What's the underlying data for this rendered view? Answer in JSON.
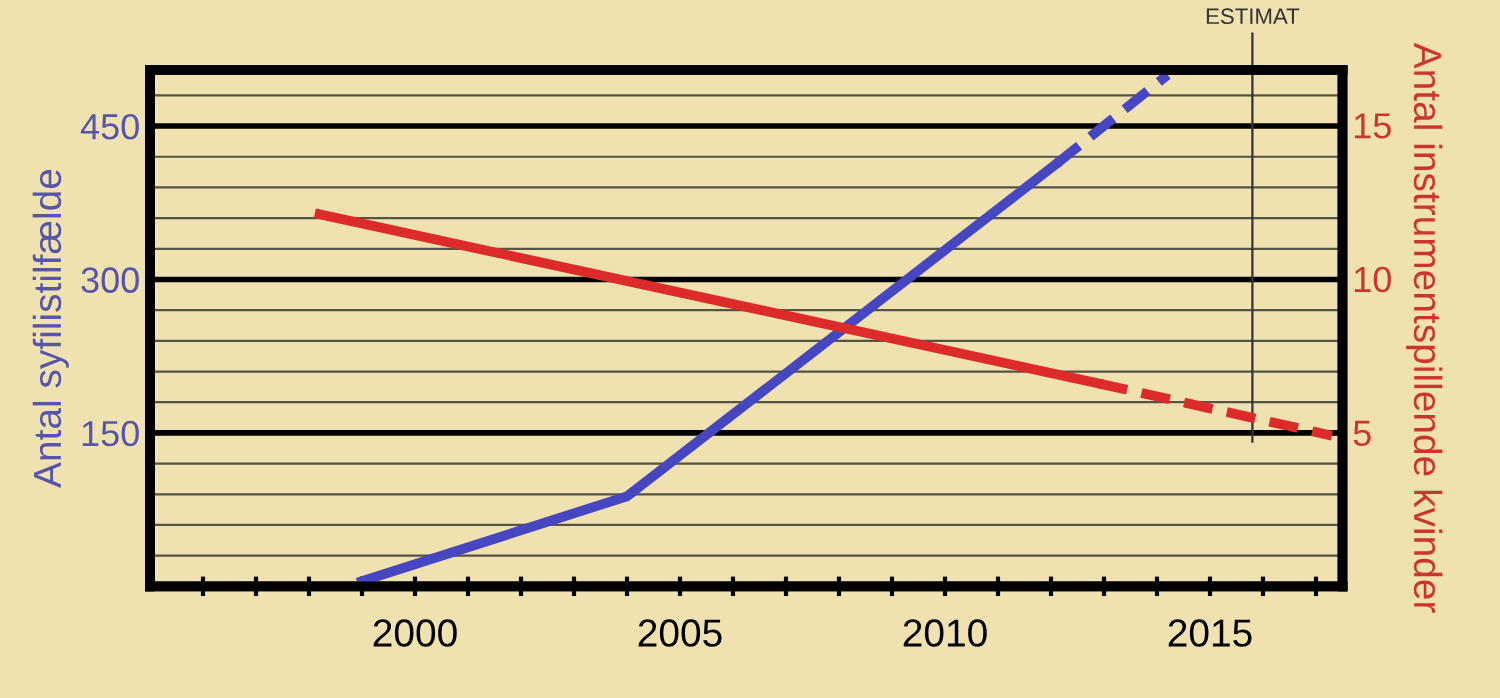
{
  "chart_data": {
    "type": "line",
    "ylabel": "Antal syfilistilfælde",
    "y2label": "Antal instrumentspillende kvinder",
    "xlim": [
      1995,
      2017.5
    ],
    "xticks": [
      {
        "value": 1996,
        "label": null
      },
      {
        "value": 1997,
        "label": null
      },
      {
        "value": 1998,
        "label": null
      },
      {
        "value": 1999,
        "label": null
      },
      2000,
      {
        "value": 2001,
        "label": null
      },
      {
        "value": 2002,
        "label": null
      },
      {
        "value": 2003,
        "label": null
      },
      {
        "value": 2004,
        "label": null
      },
      2005,
      {
        "value": 2006,
        "label": null
      },
      {
        "value": 2007,
        "label": null
      },
      {
        "value": 2008,
        "label": null
      },
      {
        "value": 2009,
        "label": null
      },
      2010,
      {
        "value": 2011,
        "label": null
      },
      {
        "value": 2012,
        "label": null
      },
      {
        "value": 2013,
        "label": null
      },
      {
        "value": 2014,
        "label": null
      },
      2015,
      {
        "value": 2016,
        "label": null
      },
      {
        "value": 2017,
        "label": null
      }
    ],
    "ylim": [
      0,
      505
    ],
    "yticks": [
      150,
      300,
      450
    ],
    "y2lim": [
      0,
      16.8
    ],
    "y2ticks": [
      5,
      10,
      15
    ],
    "grid": "y",
    "ref_lines": [
      {
        "axis": "x",
        "value": 2015.8,
        "label": "ESTIMAT",
        "color": "#333333"
      }
    ],
    "series": [
      {
        "color": "#4646c0",
        "x": [
          1999,
          2004,
          2012.1
        ],
        "values": [
          5,
          88,
          413
        ],
        "line_style": "solid"
      },
      {
        "color": "#4646c0",
        "x": [
          2012.1,
          2014.2
        ],
        "values": [
          413,
          500
        ],
        "line_style": "dashed"
      },
      {
        "color": "#dd2a2a",
        "axis": "y2",
        "x": [
          1998.2,
          2012.9
        ],
        "values": [
          12.1,
          6.6
        ],
        "line_style": "solid"
      },
      {
        "color": "#dd2a2a",
        "axis": "y2",
        "x": [
          2012.9,
          2017.3
        ],
        "values": [
          6.6,
          4.9
        ],
        "line_style": "dashed"
      }
    ]
  }
}
